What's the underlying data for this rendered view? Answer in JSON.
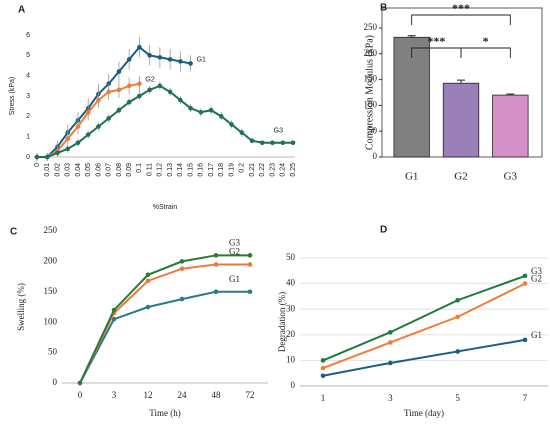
{
  "chart_data": [
    {
      "type": "line",
      "label": "A",
      "ylabel": "Stress (kPa)",
      "xlabel": "%Strain",
      "categories": [
        "0",
        "0.01",
        "0.02",
        "0.03",
        "0.04",
        "0.05",
        "0.06",
        "0.07",
        "0.08",
        "0.09",
        "0.1",
        "0.11",
        "0.12",
        "0.13",
        "0.14",
        "0.15",
        "0.16",
        "0.17",
        "0.18",
        "0.19",
        "0.2",
        "0.21",
        "0.22",
        "0.23",
        "0.24",
        "0.25"
      ],
      "ylim": [
        0,
        6
      ],
      "yticks": [
        0,
        1,
        2,
        3,
        4,
        5,
        6
      ],
      "grid": false,
      "series": [
        {
          "name": "G1",
          "color": "#1a5e86",
          "values": [
            0,
            0,
            0.5,
            1.2,
            1.8,
            2.4,
            3.1,
            3.6,
            4.2,
            4.8,
            5.4,
            5.0,
            4.9,
            4.8,
            4.7,
            4.6,
            null,
            null,
            null,
            null,
            null,
            null,
            null,
            null,
            null,
            null
          ],
          "errors": [
            0.2,
            0.2,
            0.3,
            0.4,
            0.4,
            0.5,
            0.5,
            0.5,
            0.5,
            0.5,
            0.5,
            0.5,
            0.5,
            0.5,
            0.5,
            0.4,
            null,
            null,
            null,
            null,
            null,
            null,
            null,
            null,
            null,
            null
          ]
        },
        {
          "name": "G2",
          "color": "#ee7d3b",
          "values": [
            0,
            0,
            0.3,
            0.9,
            1.5,
            2.2,
            2.8,
            3.2,
            3.3,
            3.5,
            3.6,
            null,
            null,
            null,
            null,
            null,
            null,
            null,
            null,
            null,
            null,
            null,
            null,
            null,
            null,
            null
          ],
          "errors": [
            0.2,
            0.2,
            0.3,
            0.4,
            0.4,
            0.4,
            0.4,
            0.4,
            0.4,
            0.4,
            0.4,
            null,
            null,
            null,
            null,
            null,
            null,
            null,
            null,
            null,
            null,
            null,
            null,
            null,
            null,
            null
          ]
        },
        {
          "name": "G3",
          "color": "#1f6f5c",
          "values": [
            0,
            0,
            0.2,
            0.4,
            0.7,
            1.1,
            1.5,
            1.9,
            2.3,
            2.7,
            3.0,
            3.3,
            3.5,
            3.2,
            2.8,
            2.4,
            2.2,
            2.3,
            2.0,
            1.6,
            1.2,
            0.8,
            0.7,
            0.7,
            0.7,
            0.7
          ],
          "errors": [
            0.1,
            0.1,
            0.2,
            0.2,
            0.2,
            0.2,
            0.2,
            0.2,
            0.2,
            0.2,
            0.2,
            0.2,
            0.2,
            0.2,
            0.2,
            0.2,
            0.2,
            0.2,
            0.2,
            0.2,
            0.2,
            0.1,
            0.1,
            0.1,
            0.1,
            0.1
          ]
        }
      ]
    },
    {
      "type": "bar",
      "label": "B",
      "ylabel": "Compression Modulus (kPa)",
      "categories": [
        "G1",
        "G2",
        "G3"
      ],
      "values": [
        232,
        143,
        120
      ],
      "errors": [
        3,
        6,
        2
      ],
      "colors": [
        "#808080",
        "#9b80b8",
        "#d690c8"
      ],
      "ylim": [
        0,
        250
      ],
      "yticks": [
        0,
        50,
        100,
        150,
        200,
        250
      ],
      "annotations": [
        "***",
        "***",
        "*"
      ]
    },
    {
      "type": "line",
      "label": "C",
      "ylabel": "Swelling (%)",
      "xlabel": "Time (h)",
      "categories": [
        "0",
        "3",
        "12",
        "24",
        "48",
        "72"
      ],
      "ylim": [
        0,
        250
      ],
      "yticks": [
        0,
        50,
        100,
        150,
        200,
        250
      ],
      "grid": false,
      "series": [
        {
          "name": "G1",
          "color": "#2a7a8c",
          "values": [
            0,
            105,
            125,
            138,
            150,
            150
          ]
        },
        {
          "name": "G2",
          "color": "#e97a3c",
          "values": [
            0,
            115,
            168,
            188,
            195,
            195
          ]
        },
        {
          "name": "G3",
          "color": "#2a7a3a",
          "values": [
            0,
            120,
            178,
            200,
            210,
            210
          ]
        }
      ]
    },
    {
      "type": "line",
      "label": "D",
      "ylabel": "Degradation (%)",
      "xlabel": "Time (day)",
      "categories": [
        "1",
        "3",
        "5",
        "7"
      ],
      "ylim": [
        0,
        50
      ],
      "yticks": [
        0,
        10,
        20,
        30,
        40,
        50
      ],
      "grid": true,
      "series": [
        {
          "name": "G1",
          "color": "#1a5e86",
          "values": [
            4,
            9,
            13.5,
            18
          ]
        },
        {
          "name": "G2",
          "color": "#ee7d3b",
          "values": [
            7,
            17,
            27,
            40
          ]
        },
        {
          "name": "G3",
          "color": "#1e7a3a",
          "values": [
            10,
            21,
            33.5,
            43
          ]
        }
      ]
    }
  ]
}
